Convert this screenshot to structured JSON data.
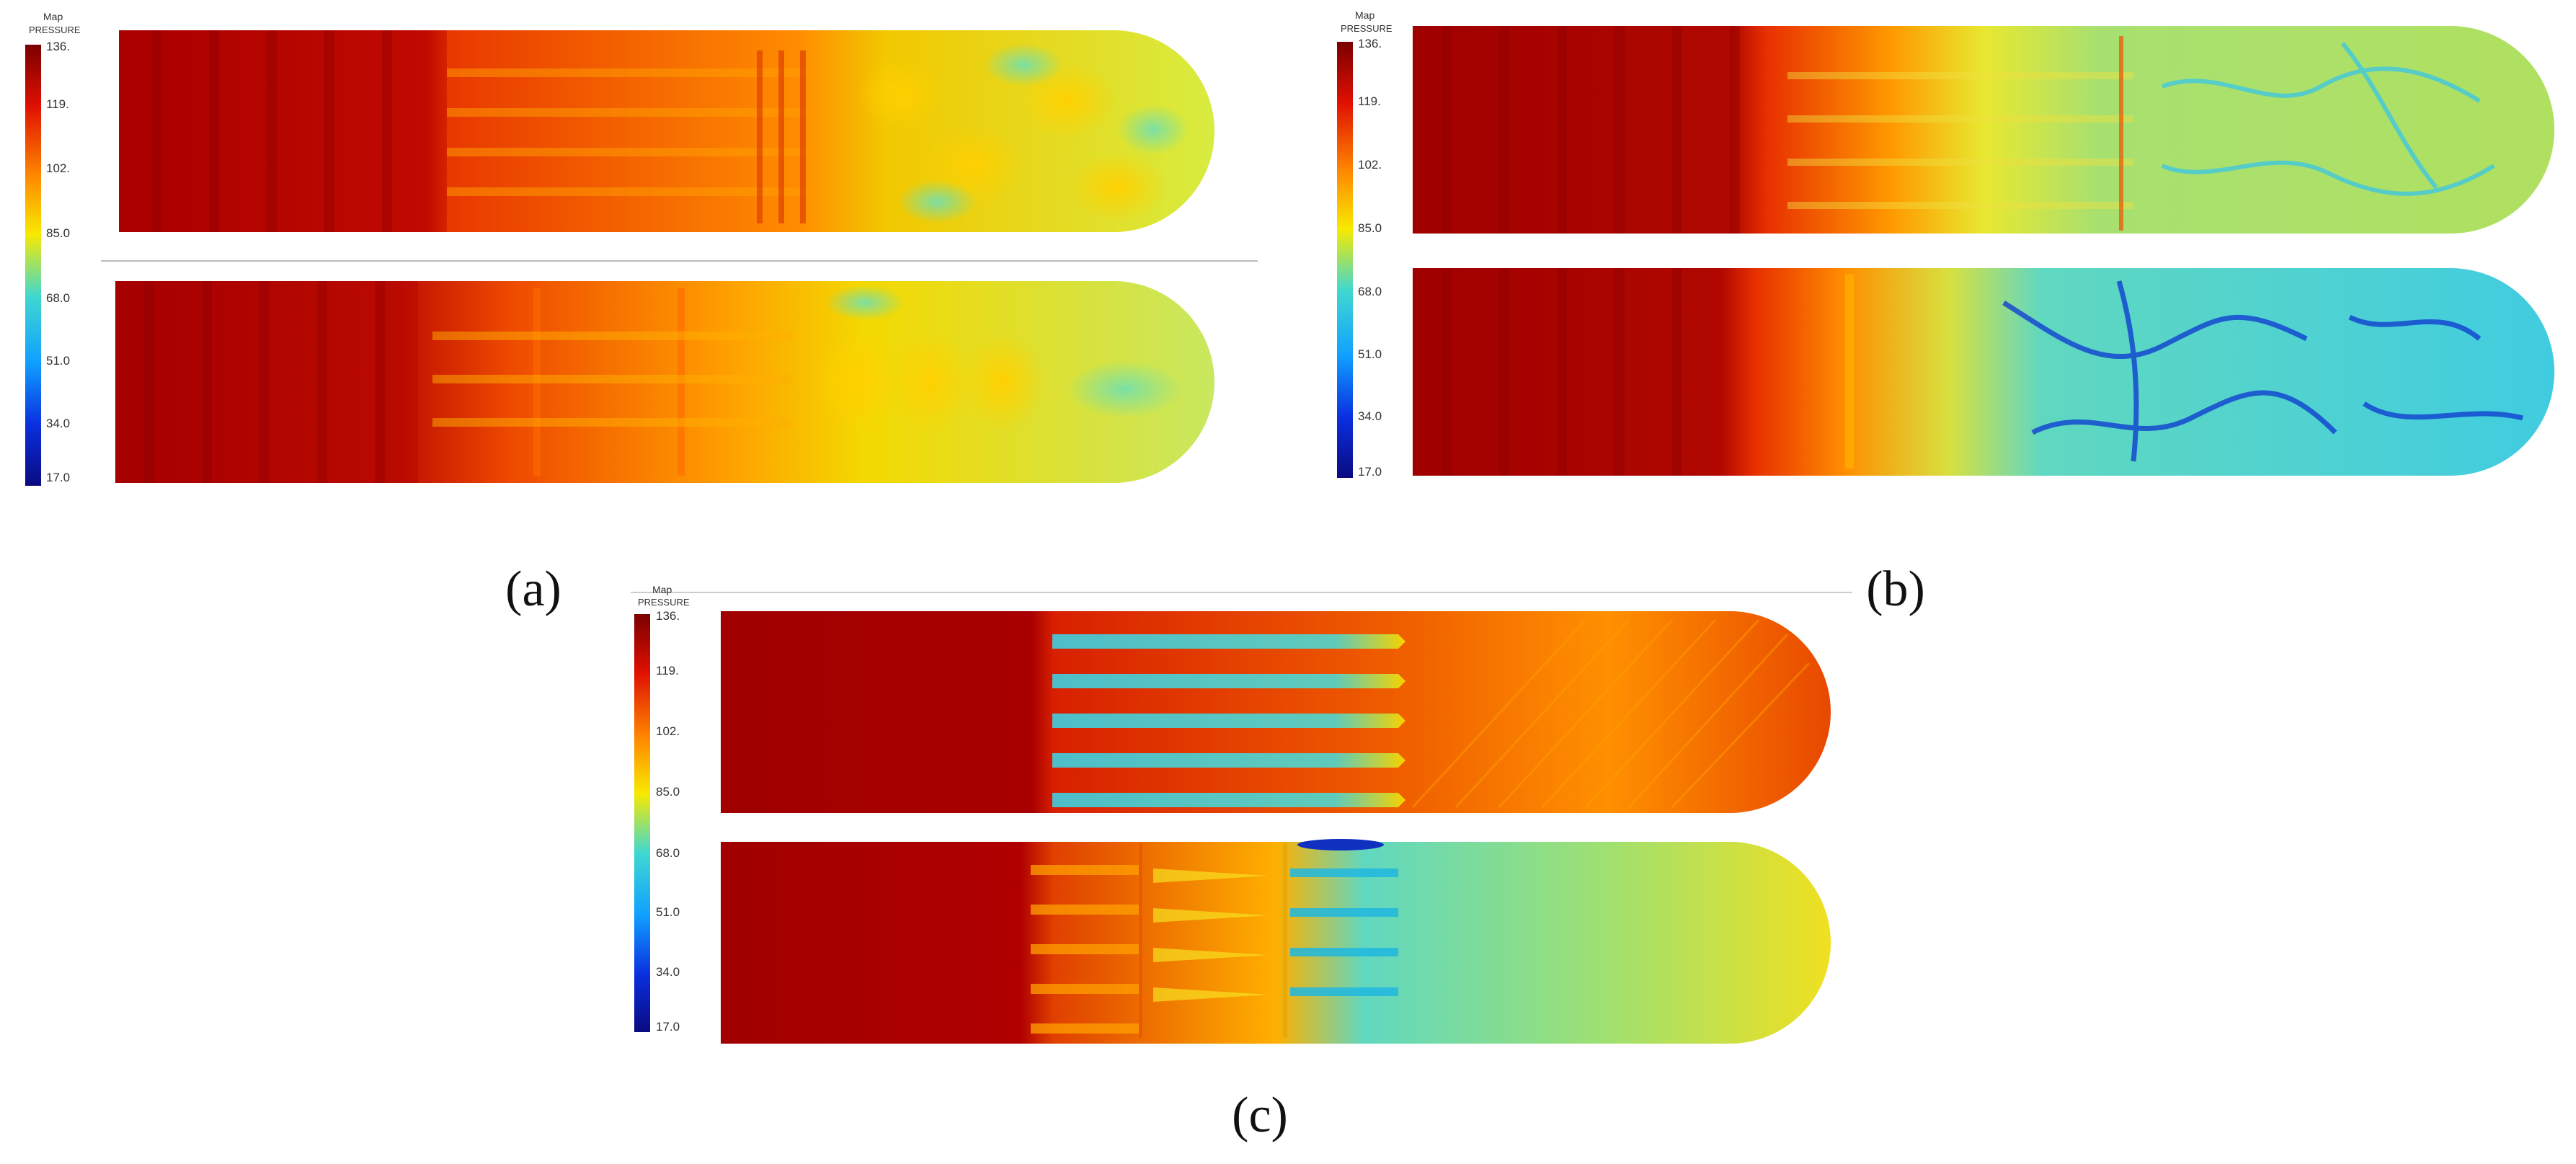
{
  "panels": [
    {
      "id": "a",
      "label": "(a)",
      "legend": {
        "title_line1": "Map",
        "title_line2": "PRESSURE",
        "ticks": [
          "136.",
          "119.",
          "102.",
          "85.0",
          "68.0",
          "51.0",
          "34.0",
          "17.0"
        ]
      }
    },
    {
      "id": "b",
      "label": "(b)",
      "legend": {
        "title_line1": "Map",
        "title_line2": "PRESSURE",
        "ticks": [
          "136.",
          "119.",
          "102.",
          "85.0",
          "68.0",
          "51.0",
          "34.0",
          "17.0"
        ]
      }
    },
    {
      "id": "c",
      "label": "(c)",
      "legend": {
        "title_line1": "Map",
        "title_line2": "PRESSURE",
        "ticks": [
          "136.",
          "119.",
          "102.",
          "85.0",
          "68.0",
          "51.0",
          "34.0",
          "17.0"
        ]
      }
    }
  ],
  "colors": {
    "dark_red": "#9e0000",
    "red": "#e02000",
    "orange": "#ff8c00",
    "yellow": "#f5e600",
    "green": "#a8e050",
    "cyan": "#30d0e0",
    "blue": "#1040e0",
    "navy": "#0a0a90"
  }
}
